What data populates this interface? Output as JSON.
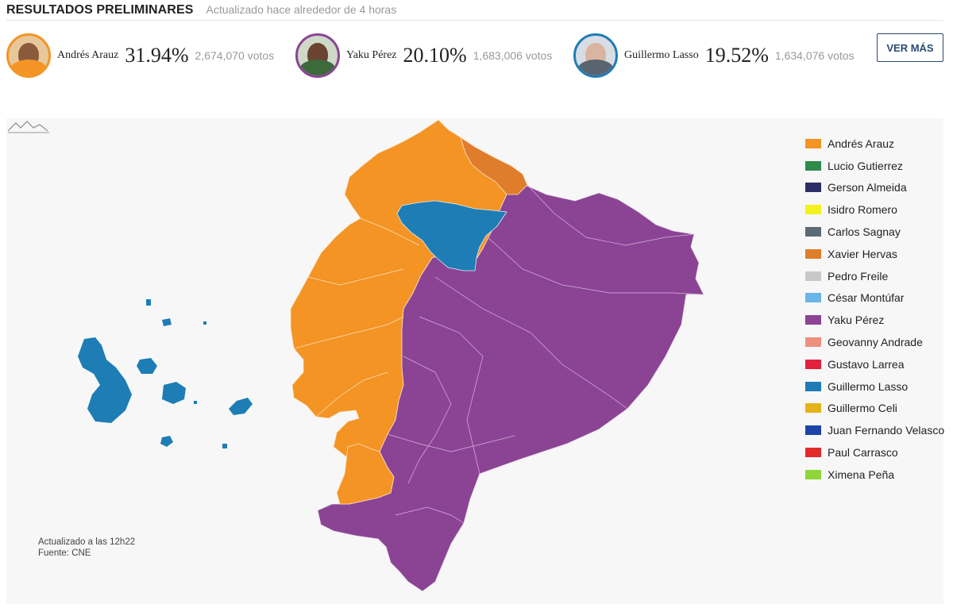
{
  "header": {
    "title": "RESULTADOS PRELIMINARES",
    "updated": "Actualizado hace alrededor de 4 horas"
  },
  "candidates": [
    {
      "name": "Andrés Arauz",
      "pct": "31.94%",
      "votes": "2,674,070 votos",
      "color": "#f39425"
    },
    {
      "name": "Yaku Pérez",
      "pct": "20.10%",
      "votes": "1,683,006 votos",
      "color": "#8b4494"
    },
    {
      "name": "Guillermo Lasso",
      "pct": "19.52%",
      "votes": "1,634,076 votos",
      "color": "#1e7db5"
    }
  ],
  "more_button": "VER MÁS",
  "legend": [
    {
      "label": "Andrés Arauz",
      "color": "#f39425"
    },
    {
      "label": "Lucio Gutierrez",
      "color": "#2e8b4a"
    },
    {
      "label": "Gerson Almeida",
      "color": "#2b2f66"
    },
    {
      "label": "Isidro Romero",
      "color": "#f2f21f"
    },
    {
      "label": "Carlos Sagnay",
      "color": "#5a6b78"
    },
    {
      "label": "Xavier Hervas",
      "color": "#e07d2c"
    },
    {
      "label": "Pedro Freile",
      "color": "#c8c8c8"
    },
    {
      "label": "César Montúfar",
      "color": "#6ab4e8"
    },
    {
      "label": "Yaku Pérez",
      "color": "#8b4494"
    },
    {
      "label": "Geovanny Andrade",
      "color": "#ec8f7c"
    },
    {
      "label": "Gustavo Larrea",
      "color": "#e0223d"
    },
    {
      "label": "Guillermo Lasso",
      "color": "#1e7db5"
    },
    {
      "label": "Guillermo Celi",
      "color": "#e5b21a"
    },
    {
      "label": "Juan Fernando Velasco",
      "color": "#1b43a8"
    },
    {
      "label": "Paul Carrasco",
      "color": "#e32a2a"
    },
    {
      "label": "Ximena Peña",
      "color": "#8ed63a"
    }
  ],
  "map": {
    "updated_note": "Actualizado a las 12h22",
    "source_note": "Fuente: CNE",
    "region_winners": {
      "coast": "Andrés Arauz",
      "esmeraldas_north": "Xavier Hervas",
      "pichincha": "Guillermo Lasso",
      "galapagos": "Guillermo Lasso",
      "sierra_and_amazon": "Yaku Pérez",
      "south_coast": "Andrés Arauz"
    }
  }
}
